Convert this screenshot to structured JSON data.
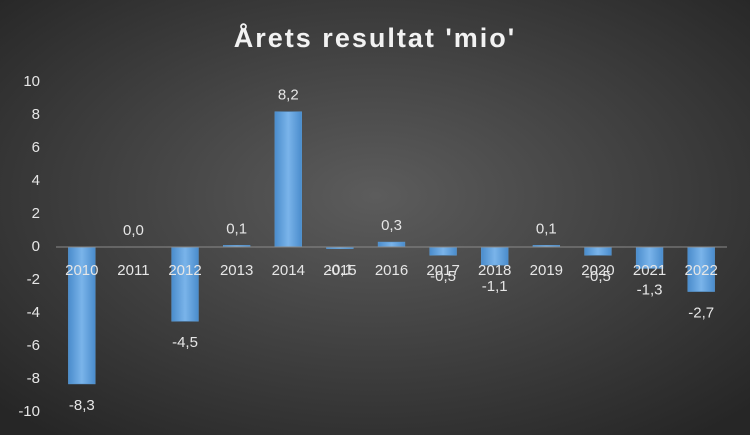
{
  "chart_data": {
    "type": "bar",
    "title": "Årets resultat 'mio'",
    "categories": [
      "2010",
      "2011",
      "2012",
      "2013",
      "2014",
      "2015",
      "2016",
      "2017",
      "2018",
      "2019",
      "2020",
      "2021",
      "2022"
    ],
    "values": [
      -8.3,
      0.0,
      -4.5,
      0.1,
      8.2,
      -0.1,
      0.3,
      -0.5,
      -1.1,
      0.1,
      -0.5,
      -1.3,
      -2.7
    ],
    "value_labels": [
      "-8,3",
      "0,0",
      "-4,5",
      "0,1",
      "8,2",
      "-0,1",
      "0,3",
      "-0,5",
      "-1,1",
      "0,1",
      "-0,5",
      "-1,3",
      "-2,7"
    ],
    "color": "#5b9bd5",
    "ylim": [
      -10,
      10
    ],
    "yticks": [
      -10,
      -8,
      -6,
      -4,
      -2,
      0,
      2,
      4,
      6,
      8,
      10
    ],
    "grid": false
  }
}
